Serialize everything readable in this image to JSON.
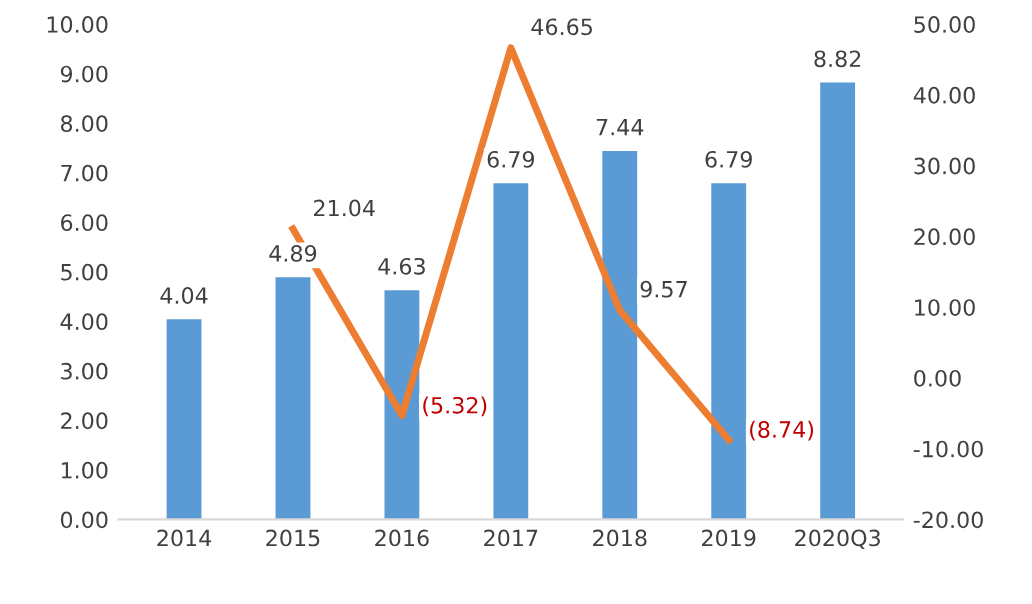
{
  "chart_data": {
    "type": "bar",
    "categories": [
      "2014",
      "2015",
      "2016",
      "2017",
      "2018",
      "2019",
      "2020Q3"
    ],
    "series": [
      {
        "color": "#5b9bd5",
        "values": [
          4.04,
          4.89,
          4.63,
          6.79,
          7.44,
          6.79,
          8.82
        ]
      },
      {
        "type": "line",
        "axis": "y2",
        "color": "#ed7d31",
        "values": [
          null,
          21.04,
          -5.32,
          46.65,
          9.57,
          -8.74,
          null
        ],
        "value_labels": [
          null,
          "21.04",
          "(5.32)",
          "46.65",
          "9.57",
          "(8.74)",
          null
        ]
      }
    ],
    "data_labels": true,
    "grid": false,
    "marker": "none",
    "line_style": "solid",
    "ylim": [
      0,
      10
    ],
    "yticks": [
      {
        "value": 0,
        "label": "0.00"
      },
      {
        "value": 1,
        "label": "1.00"
      },
      {
        "value": 2,
        "label": "2.00"
      },
      {
        "value": 3,
        "label": "3.00"
      },
      {
        "value": 4,
        "label": "4.00"
      },
      {
        "value": 5,
        "label": "5.00"
      },
      {
        "value": 6,
        "label": "6.00"
      },
      {
        "value": 7,
        "label": "7.00"
      },
      {
        "value": 8,
        "label": "8.00"
      },
      {
        "value": 9,
        "label": "9.00"
      },
      {
        "value": 10,
        "label": "10.00"
      }
    ],
    "y2lim": [
      -20,
      50
    ],
    "y2ticks": [
      {
        "value": -20,
        "label": "-20.00"
      },
      {
        "value": -10,
        "label": "-10.00"
      },
      {
        "value": 0,
        "label": "0.00"
      },
      {
        "value": 10,
        "label": "10.00"
      },
      {
        "value": 20,
        "label": "20.00"
      },
      {
        "value": 30,
        "label": "30.00"
      },
      {
        "value": 40,
        "label": "40.00"
      },
      {
        "value": 50,
        "label": "50.00"
      }
    ]
  }
}
